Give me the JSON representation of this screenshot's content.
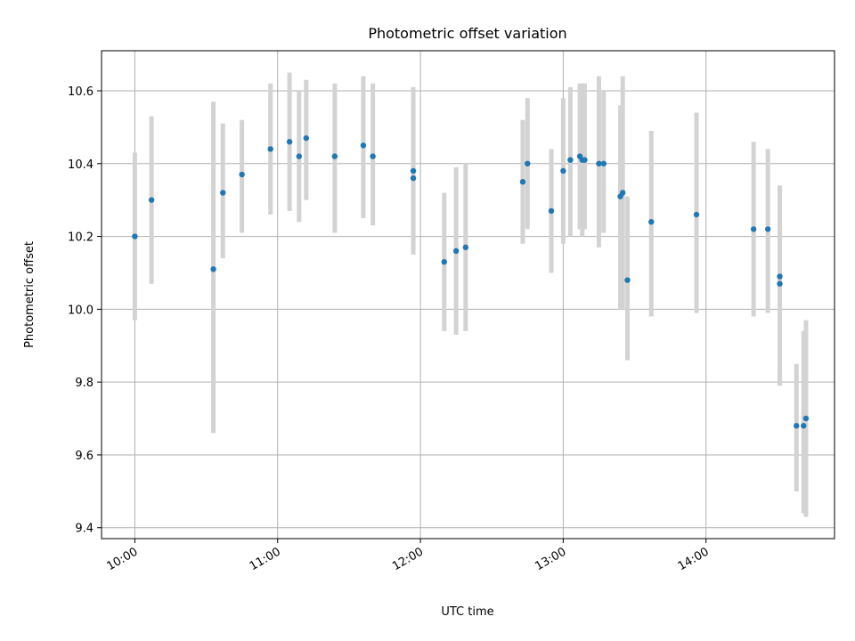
{
  "chart_data": {
    "type": "scatter",
    "title": "Photometric offset variation",
    "xlabel": "UTC time",
    "ylabel": "Photometric offset",
    "x_ticks": [
      "10:00",
      "11:00",
      "12:00",
      "13:00",
      "14:00"
    ],
    "y_ticks": [
      "9.4",
      "9.6",
      "9.8",
      "10.0",
      "10.2",
      "10.4",
      "10.6"
    ],
    "xlim": [
      "09:46",
      "14:54"
    ],
    "ylim": [
      9.37,
      10.71
    ],
    "grid": true,
    "errorbar_color": "#d3d3d3",
    "point_color": "#1f77b4",
    "points": [
      {
        "t": "10:00",
        "y": 10.2,
        "lo": 9.97,
        "hi": 10.43
      },
      {
        "t": "10:07",
        "y": 10.3,
        "lo": 10.07,
        "hi": 10.53
      },
      {
        "t": "10:33",
        "y": 10.11,
        "lo": 9.66,
        "hi": 10.57
      },
      {
        "t": "10:37",
        "y": 10.32,
        "lo": 10.14,
        "hi": 10.51
      },
      {
        "t": "10:45",
        "y": 10.37,
        "lo": 10.21,
        "hi": 10.52
      },
      {
        "t": "10:57",
        "y": 10.44,
        "lo": 10.26,
        "hi": 10.62
      },
      {
        "t": "11:05",
        "y": 10.46,
        "lo": 10.27,
        "hi": 10.65
      },
      {
        "t": "11:09",
        "y": 10.42,
        "lo": 10.24,
        "hi": 10.6
      },
      {
        "t": "11:12",
        "y": 10.47,
        "lo": 10.3,
        "hi": 10.63
      },
      {
        "t": "11:24",
        "y": 10.42,
        "lo": 10.21,
        "hi": 10.62
      },
      {
        "t": "11:36",
        "y": 10.45,
        "lo": 10.25,
        "hi": 10.64
      },
      {
        "t": "11:40",
        "y": 10.42,
        "lo": 10.23,
        "hi": 10.62
      },
      {
        "t": "11:57",
        "y": 10.38,
        "lo": 10.15,
        "hi": 10.61
      },
      {
        "t": "11:57",
        "y": 10.36,
        "lo": 10.15,
        "hi": 10.57
      },
      {
        "t": "12:10",
        "y": 10.13,
        "lo": 9.94,
        "hi": 10.32
      },
      {
        "t": "12:15",
        "y": 10.16,
        "lo": 9.93,
        "hi": 10.39
      },
      {
        "t": "12:19",
        "y": 10.17,
        "lo": 9.94,
        "hi": 10.4
      },
      {
        "t": "12:43",
        "y": 10.35,
        "lo": 10.18,
        "hi": 10.52
      },
      {
        "t": "12:45",
        "y": 10.4,
        "lo": 10.22,
        "hi": 10.58
      },
      {
        "t": "12:55",
        "y": 10.27,
        "lo": 10.1,
        "hi": 10.44
      },
      {
        "t": "13:00",
        "y": 10.38,
        "lo": 10.18,
        "hi": 10.58
      },
      {
        "t": "13:03",
        "y": 10.41,
        "lo": 10.2,
        "hi": 10.61
      },
      {
        "t": "13:07",
        "y": 10.42,
        "lo": 10.22,
        "hi": 10.62
      },
      {
        "t": "13:08",
        "y": 10.41,
        "lo": 10.2,
        "hi": 10.62
      },
      {
        "t": "13:09",
        "y": 10.41,
        "lo": 10.22,
        "hi": 10.62
      },
      {
        "t": "13:15",
        "y": 10.4,
        "lo": 10.17,
        "hi": 10.64
      },
      {
        "t": "13:17",
        "y": 10.4,
        "lo": 10.21,
        "hi": 10.6
      },
      {
        "t": "13:24",
        "y": 10.31,
        "lo": 10.0,
        "hi": 10.56
      },
      {
        "t": "13:25",
        "y": 10.32,
        "lo": 10.0,
        "hi": 10.64
      },
      {
        "t": "13:27",
        "y": 10.08,
        "lo": 9.86,
        "hi": 10.31
      },
      {
        "t": "13:37",
        "y": 10.24,
        "lo": 9.98,
        "hi": 10.49
      },
      {
        "t": "13:56",
        "y": 10.26,
        "lo": 9.99,
        "hi": 10.54
      },
      {
        "t": "14:20",
        "y": 10.22,
        "lo": 9.98,
        "hi": 10.46
      },
      {
        "t": "14:26",
        "y": 10.22,
        "lo": 9.99,
        "hi": 10.44
      },
      {
        "t": "14:31",
        "y": 10.09,
        "lo": 9.84,
        "hi": 10.33
      },
      {
        "t": "14:31",
        "y": 10.07,
        "lo": 9.79,
        "hi": 10.34
      },
      {
        "t": "14:38",
        "y": 9.68,
        "lo": 9.5,
        "hi": 9.85
      },
      {
        "t": "14:41",
        "y": 9.68,
        "lo": 9.44,
        "hi": 9.94
      },
      {
        "t": "14:42",
        "y": 9.7,
        "lo": 9.43,
        "hi": 9.97
      }
    ]
  }
}
